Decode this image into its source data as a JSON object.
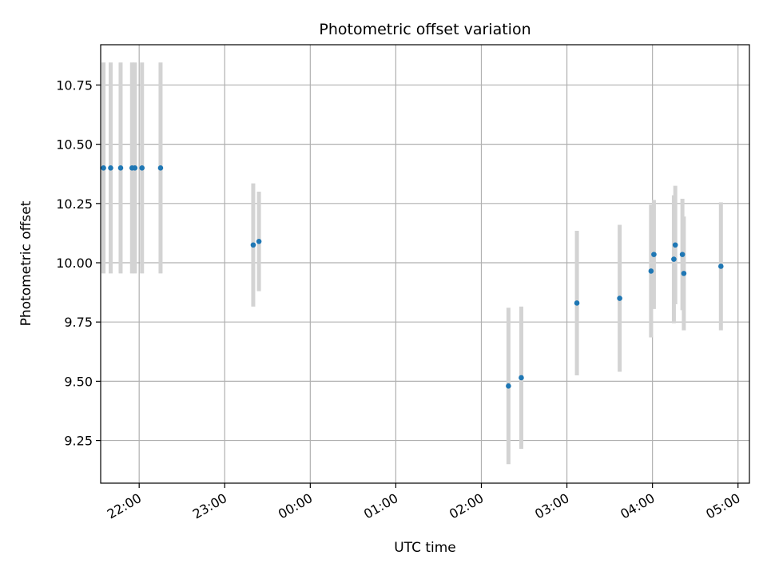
{
  "chart_data": {
    "type": "scatter",
    "title": "Photometric offset variation",
    "xlabel": "UTC time",
    "ylabel": "Photometric offset",
    "x_tick_labels": [
      "22:00",
      "23:00",
      "00:00",
      "01:00",
      "02:00",
      "03:00",
      "04:00",
      "05:00"
    ],
    "y_ticks": [
      9.25,
      9.5,
      9.75,
      10.0,
      10.25,
      10.5,
      10.75
    ],
    "y_tick_labels": [
      "9.25",
      "9.50",
      "9.75",
      "10.00",
      "10.25",
      "10.50",
      "10.75"
    ],
    "xlim": [
      "21:33",
      "05:08"
    ],
    "ylim": [
      9.07,
      10.92
    ],
    "grid": true,
    "marker_color": "#1f77b4",
    "errorbar_color": "#d3d3d3",
    "points": [
      {
        "time": "21:35",
        "y": 10.4,
        "yerr": 0.445
      },
      {
        "time": "21:40",
        "y": 10.4,
        "yerr": 0.445
      },
      {
        "time": "21:47",
        "y": 10.4,
        "yerr": 0.445
      },
      {
        "time": "21:55",
        "y": 10.4,
        "yerr": 0.445
      },
      {
        "time": "21:57",
        "y": 10.4,
        "yerr": 0.445
      },
      {
        "time": "22:02",
        "y": 10.4,
        "yerr": 0.445
      },
      {
        "time": "22:15",
        "y": 10.4,
        "yerr": 0.445
      },
      {
        "time": "23:20",
        "y": 10.075,
        "yerr": 0.26
      },
      {
        "time": "23:24",
        "y": 10.09,
        "yerr": 0.21
      },
      {
        "time": "02:19",
        "y": 9.48,
        "yerr": 0.33
      },
      {
        "time": "02:28",
        "y": 9.515,
        "yerr": 0.3
      },
      {
        "time": "03:07",
        "y": 9.83,
        "yerr": 0.305
      },
      {
        "time": "03:37",
        "y": 9.85,
        "yerr": 0.31
      },
      {
        "time": "03:59",
        "y": 9.965,
        "yerr": 0.28
      },
      {
        "time": "04:01",
        "y": 10.035,
        "yerr": 0.23
      },
      {
        "time": "04:15",
        "y": 10.015,
        "yerr": 0.27
      },
      {
        "time": "04:16",
        "y": 10.075,
        "yerr": 0.25
      },
      {
        "time": "04:21",
        "y": 10.035,
        "yerr": 0.235
      },
      {
        "time": "04:22",
        "y": 9.955,
        "yerr": 0.24
      },
      {
        "time": "04:48",
        "y": 9.985,
        "yerr": 0.27
      }
    ]
  }
}
